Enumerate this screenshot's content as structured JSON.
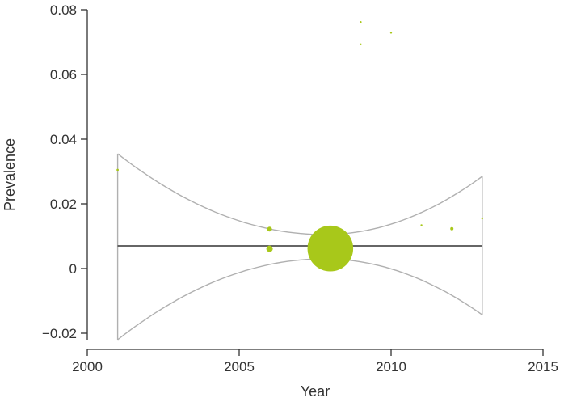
{
  "chart_data": {
    "type": "scatter",
    "title": "",
    "xlabel": "Year",
    "ylabel": "Prevalence",
    "xlim": [
      2000,
      2015
    ],
    "ylim": [
      -0.022,
      0.08
    ],
    "x_ticks": [
      2000,
      2005,
      2010,
      2015
    ],
    "x_tick_labels": [
      "2000",
      "2005",
      "2010",
      "2015"
    ],
    "y_ticks": [
      -0.02,
      0,
      0.02,
      0.04,
      0.06,
      0.08
    ],
    "y_tick_labels": [
      "−0.02",
      "0",
      "0.02",
      "0.04",
      "0.06",
      "0.08"
    ],
    "grid": false,
    "colors": {
      "points": "#a8c81a",
      "fit_line": "#333333",
      "confidence_band": "#b0b0b0",
      "axis": "#333333"
    },
    "points": [
      {
        "x": 2001,
        "y": 0.0305,
        "weight": 0.02
      },
      {
        "x": 2006,
        "y": 0.0122,
        "weight": 0.09
      },
      {
        "x": 2006,
        "y": 0.0061,
        "weight": 0.16
      },
      {
        "x": 2008,
        "y": 0.0062,
        "weight": 8.0
      },
      {
        "x": 2009,
        "y": 0.0762,
        "weight": 0.0025
      },
      {
        "x": 2009,
        "y": 0.0693,
        "weight": 0.006
      },
      {
        "x": 2010,
        "y": 0.0729,
        "weight": 0.006
      },
      {
        "x": 2011,
        "y": 0.0134,
        "weight": 0.014
      },
      {
        "x": 2012,
        "y": 0.0123,
        "weight": 0.04
      },
      {
        "x": 2013,
        "y": 0.0155,
        "weight": 0.01
      }
    ],
    "fit_line": {
      "x": [
        2001,
        2013
      ],
      "y": [
        0.007,
        0.007
      ]
    },
    "confidence_band": {
      "x_center": 2007.8,
      "upper": {
        "x": [
          2001,
          2007.8,
          2013
        ],
        "y": [
          0.0355,
          0.0105,
          0.0285
        ]
      },
      "lower": {
        "x": [
          2001,
          2007.8,
          2013
        ],
        "y": [
          -0.022,
          0.003,
          -0.0143
        ]
      }
    }
  }
}
